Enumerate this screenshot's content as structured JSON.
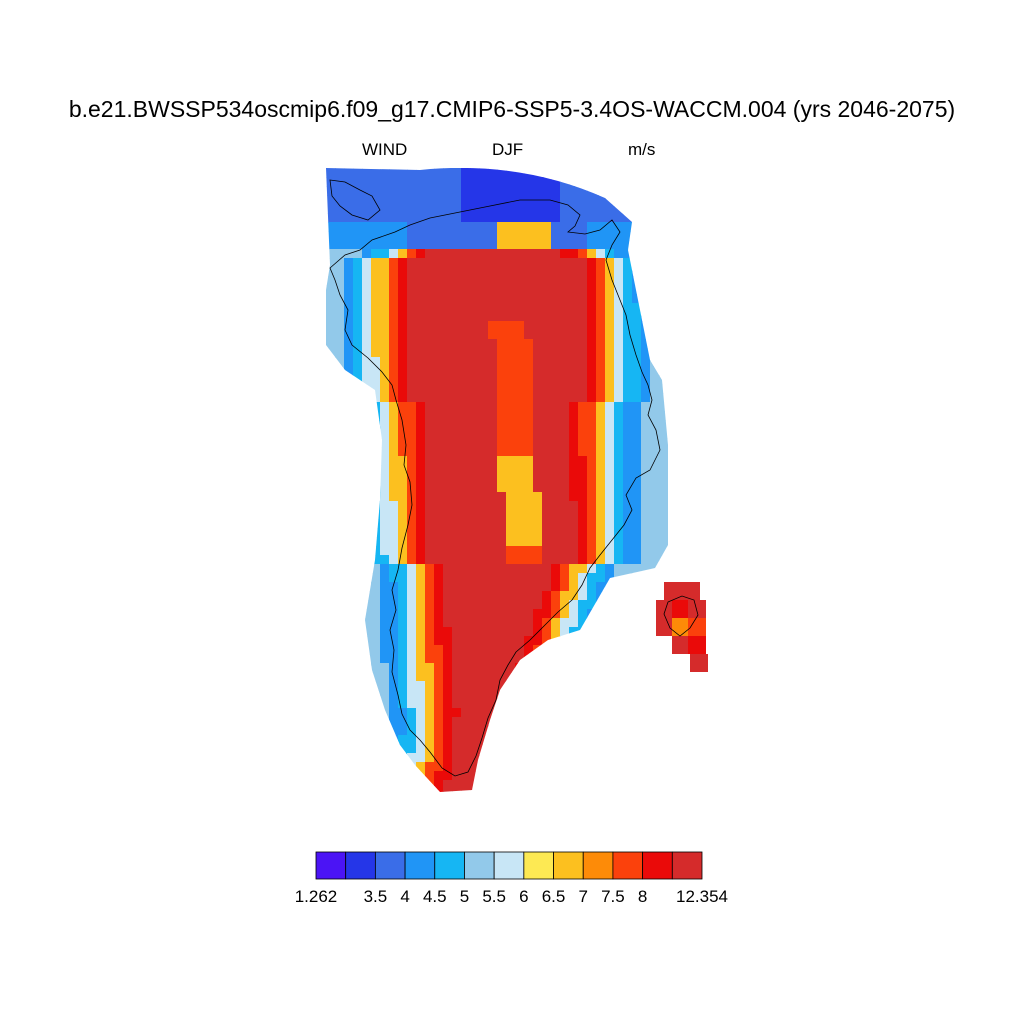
{
  "title": "b.e21.BWSSP534oscmip6.f09_g17.CMIP6-SSP5-3.4OS-WACCM.004 (yrs 2046-2075)",
  "subtitle": {
    "variable": "WIND",
    "season": "DJF",
    "units": "m/s"
  },
  "colorbar": {
    "min_label": "1.262",
    "max_label": "12.354",
    "levels": [
      "3.5",
      "4",
      "4.5",
      "5",
      "5.5",
      "6",
      "6.5",
      "7",
      "7.5",
      "8"
    ],
    "colors": [
      "#4b14f5",
      "#2536e8",
      "#3a6de8",
      "#2095f6",
      "#16b6f3",
      "#92c9ea",
      "#c8e6f6",
      "#fde953",
      "#fcc01f",
      "#fd8b08",
      "#fb410c",
      "#ea0a09",
      "#d52b2b"
    ]
  }
}
